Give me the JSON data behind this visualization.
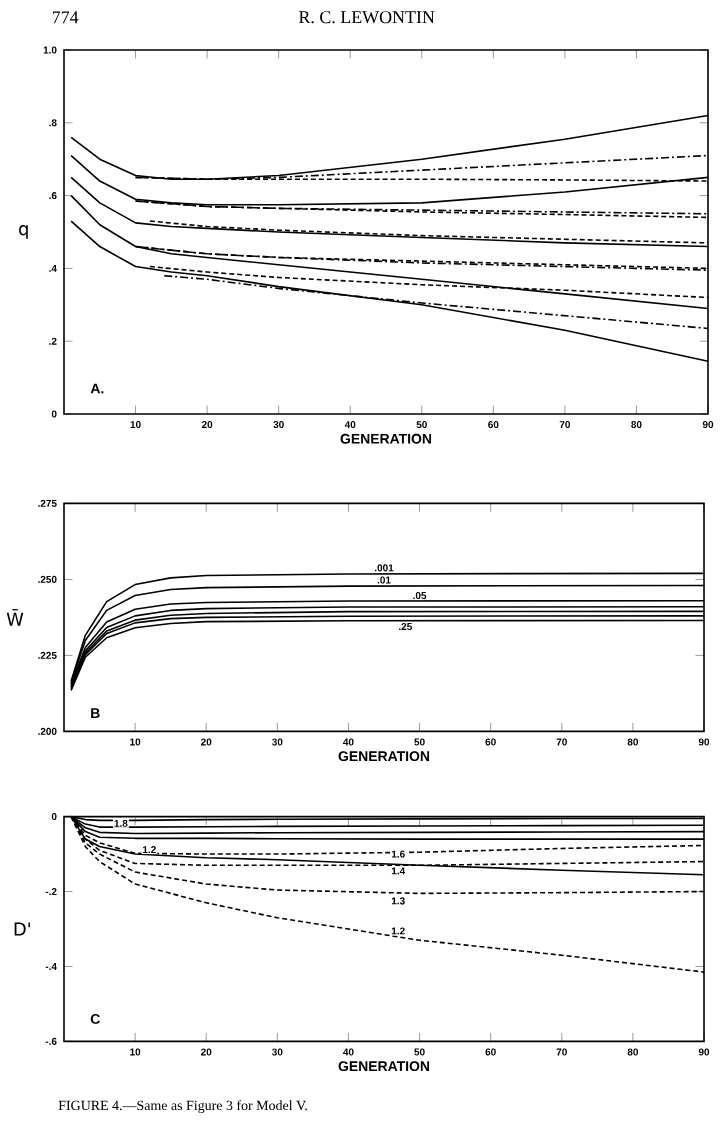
{
  "chart_data": [
    {
      "type": "line",
      "title": "R. C. LEWONTIN",
      "xlabel": "GENERATION",
      "ylabel": "q",
      "xlim": [
        0,
        90
      ],
      "xticks": [
        10,
        20,
        30,
        40,
        50,
        60,
        70,
        80,
        90
      ],
      "ylim": [
        0,
        1.0
      ],
      "yticks": [
        0,
        {
          "value": 0.2,
          "label": ".2"
        },
        {
          "value": 0.4,
          "label": ".4"
        },
        {
          "value": 0.6,
          "label": ".6"
        },
        {
          "value": 0.8,
          "label": ".8"
        },
        {
          "value": 1.0,
          "label": "1.0"
        }
      ],
      "annotations": [
        "774",
        "A."
      ],
      "series": [
        {
          "color": "#000000",
          "line_style": "solid",
          "x": [
            1,
            5,
            10,
            15,
            20,
            30,
            50,
            70,
            90
          ],
          "values": [
            0.76,
            0.7,
            0.655,
            0.645,
            0.645,
            0.655,
            0.7,
            0.755,
            0.82
          ]
        },
        {
          "color": "#000000",
          "line_style": "solid",
          "x": [
            1,
            5,
            10,
            15,
            20,
            30,
            50,
            70,
            90
          ],
          "values": [
            0.71,
            0.64,
            0.59,
            0.58,
            0.575,
            0.575,
            0.58,
            0.61,
            0.65
          ]
        },
        {
          "color": "#000000",
          "line_style": "solid",
          "x": [
            1,
            5,
            10,
            15,
            20,
            30,
            50,
            70,
            90
          ],
          "values": [
            0.65,
            0.58,
            0.525,
            0.515,
            0.51,
            0.5,
            0.485,
            0.47,
            0.46
          ]
        },
        {
          "color": "#000000",
          "line_style": "solid",
          "x": [
            1,
            5,
            10,
            15,
            20,
            30,
            50,
            70,
            90
          ],
          "values": [
            0.6,
            0.52,
            0.46,
            0.44,
            0.43,
            0.41,
            0.37,
            0.33,
            0.29
          ]
        },
        {
          "color": "#000000",
          "line_style": "solid",
          "x": [
            1,
            5,
            10,
            15,
            20,
            30,
            50,
            70,
            90
          ],
          "values": [
            0.53,
            0.46,
            0.405,
            0.39,
            0.38,
            0.35,
            0.3,
            0.23,
            0.145
          ]
        },
        {
          "color": "#000000",
          "line_style": "dashdot",
          "x": [
            10,
            20,
            30,
            50,
            70,
            90
          ],
          "values": [
            0.65,
            0.645,
            0.65,
            0.67,
            0.69,
            0.71
          ]
        },
        {
          "color": "#000000",
          "line_style": "dashed",
          "x": [
            10,
            20,
            30,
            50,
            70,
            90
          ],
          "values": [
            0.65,
            0.645,
            0.645,
            0.645,
            0.643,
            0.64
          ]
        },
        {
          "color": "#000000",
          "line_style": "dashdot",
          "x": [
            10,
            20,
            30,
            50,
            70,
            90
          ],
          "values": [
            0.585,
            0.57,
            0.565,
            0.56,
            0.555,
            0.55
          ]
        },
        {
          "color": "#000000",
          "line_style": "dashed",
          "x": [
            10,
            20,
            30,
            50,
            70,
            90
          ],
          "values": [
            0.585,
            0.57,
            0.565,
            0.555,
            0.548,
            0.54
          ]
        },
        {
          "color": "#000000",
          "line_style": "dashed",
          "x": [
            12,
            20,
            30,
            50,
            70,
            90
          ],
          "values": [
            0.53,
            0.515,
            0.505,
            0.49,
            0.48,
            0.47
          ]
        },
        {
          "color": "#000000",
          "line_style": "dashdot",
          "x": [
            10,
            20,
            30,
            50,
            70,
            90
          ],
          "values": [
            0.46,
            0.44,
            0.43,
            0.415,
            0.405,
            0.395
          ]
        },
        {
          "color": "#000000",
          "line_style": "dashed",
          "x": [
            10,
            20,
            30,
            50,
            70,
            90
          ],
          "values": [
            0.46,
            0.44,
            0.43,
            0.42,
            0.41,
            0.4
          ]
        },
        {
          "color": "#000000",
          "line_style": "dashed",
          "x": [
            12,
            20,
            30,
            50,
            70,
            90
          ],
          "values": [
            0.405,
            0.39,
            0.375,
            0.355,
            0.34,
            0.32
          ]
        },
        {
          "color": "#000000",
          "line_style": "dashdot",
          "x": [
            14,
            20,
            30,
            50,
            70,
            90
          ],
          "values": [
            0.38,
            0.37,
            0.345,
            0.305,
            0.27,
            0.235
          ]
        }
      ]
    },
    {
      "type": "line",
      "xlabel": "GENERATION",
      "ylabel": "W̄",
      "xlim": [
        0,
        90
      ],
      "xticks": [
        10,
        20,
        30,
        40,
        50,
        60,
        70,
        80,
        90
      ],
      "ylim": [
        0.2,
        0.275
      ],
      "yticks": [
        {
          "value": 0.2,
          "label": ".200"
        },
        {
          "value": 0.225,
          "label": ".225"
        },
        {
          "value": 0.25,
          "label": ".250"
        },
        {
          "value": 0.275,
          "label": ".275"
        }
      ],
      "annotations": [
        "B",
        {
          "text": ".001",
          "x": 45,
          "y": 0.2538
        },
        {
          "text": ".01",
          "x": 45,
          "y": 0.2498
        },
        {
          "text": ".05",
          "x": 50,
          "y": 0.2447
        },
        {
          "text": ".25",
          "x": 48,
          "y": 0.2345
        }
      ],
      "series": [
        {
          "color": "#000000",
          "line_style": "solid",
          "x": [
            1,
            3,
            6,
            10,
            15,
            20,
            40,
            90
          ],
          "values": [
            0.2165,
            0.2316,
            0.2427,
            0.2483,
            0.2505,
            0.2513,
            0.2518,
            0.252
          ]
        },
        {
          "color": "#000000",
          "line_style": "solid",
          "x": [
            1,
            3,
            6,
            10,
            15,
            20,
            40,
            90
          ],
          "values": [
            0.216,
            0.2299,
            0.2398,
            0.2447,
            0.2467,
            0.2473,
            0.2478,
            0.248
          ]
        },
        {
          "color": "#000000",
          "line_style": "solid",
          "x": [
            1,
            3,
            6,
            10,
            15,
            20,
            40,
            90
          ],
          "values": [
            0.2155,
            0.2276,
            0.236,
            0.2402,
            0.2419,
            0.2424,
            0.2429,
            0.243
          ]
        },
        {
          "color": "#000000",
          "line_style": "solid",
          "x": [
            1,
            3,
            6,
            10,
            15,
            20,
            40,
            90
          ],
          "values": [
            0.215,
            0.2265,
            0.2342,
            0.238,
            0.2398,
            0.2404,
            0.2409,
            0.241
          ]
        },
        {
          "color": "#000000",
          "line_style": "solid",
          "x": [
            1,
            3,
            6,
            10,
            15,
            20,
            40,
            90
          ],
          "values": [
            0.2145,
            0.2258,
            0.233,
            0.2366,
            0.2382,
            0.2388,
            0.2394,
            0.2395
          ]
        },
        {
          "color": "#000000",
          "line_style": "solid",
          "x": [
            1,
            3,
            6,
            10,
            15,
            20,
            40,
            90
          ],
          "values": [
            0.214,
            0.2252,
            0.2322,
            0.2357,
            0.2371,
            0.2375,
            0.2379,
            0.238
          ]
        },
        {
          "color": "#000000",
          "line_style": "solid",
          "x": [
            1,
            3,
            6,
            10,
            15,
            20,
            40,
            90
          ],
          "values": [
            0.2135,
            0.2244,
            0.2308,
            0.2341,
            0.2355,
            0.2361,
            0.2364,
            0.2365
          ]
        }
      ]
    },
    {
      "type": "line",
      "xlabel": "GENERATION",
      "ylabel": "D'",
      "xlim": [
        0,
        90
      ],
      "xticks": [
        10,
        20,
        30,
        40,
        50,
        60,
        70,
        80,
        90
      ],
      "ylim": [
        -0.6,
        0
      ],
      "yticks": [
        {
          "value": -0.6,
          "label": "-.6"
        },
        {
          "value": -0.4,
          "label": "-.4"
        },
        {
          "value": -0.2,
          "label": "-.2"
        },
        0
      ],
      "annotations": [
        "C",
        {
          "text": "1.8",
          "x": 8,
          "y": -0.018
        },
        {
          "text": "1.2",
          "x": 12,
          "y": -0.088
        },
        {
          "text": "1.6",
          "x": 47,
          "y": -0.1
        },
        {
          "text": "1.4",
          "x": 47,
          "y": -0.145
        },
        {
          "text": "1.3",
          "x": 47,
          "y": -0.225
        },
        {
          "text": "1.2",
          "x": 47,
          "y": -0.305
        },
        "FIGURE 4.—Same as Figure 3 for Model V."
      ],
      "series": [
        {
          "color": "#000000",
          "line_style": "solid",
          "x": [
            1,
            3,
            5,
            10,
            20,
            30,
            50,
            70,
            90
          ],
          "values": [
            0,
            -0.008,
            -0.01,
            -0.01,
            -0.008,
            -0.007,
            -0.006,
            -0.005,
            -0.005
          ]
        },
        {
          "color": "#000000",
          "line_style": "solid",
          "x": [
            1,
            3,
            5,
            10,
            20,
            30,
            50,
            70,
            90
          ],
          "values": [
            0,
            -0.02,
            -0.028,
            -0.028,
            -0.027,
            -0.026,
            -0.025,
            -0.024,
            -0.023
          ]
        },
        {
          "color": "#000000",
          "line_style": "solid",
          "x": [
            1,
            3,
            5,
            10,
            20,
            30,
            50,
            70,
            90
          ],
          "values": [
            0,
            -0.03,
            -0.042,
            -0.045,
            -0.044,
            -0.043,
            -0.042,
            -0.041,
            -0.04
          ]
        },
        {
          "color": "#000000",
          "line_style": "solid",
          "x": [
            1,
            3,
            5,
            10,
            20,
            30,
            50,
            70,
            90
          ],
          "values": [
            0,
            -0.04,
            -0.055,
            -0.058,
            -0.058,
            -0.059,
            -0.06,
            -0.06,
            -0.06
          ]
        },
        {
          "color": "#000000",
          "line_style": "solid",
          "x": [
            1,
            3,
            5,
            10,
            20,
            30,
            50,
            70,
            90
          ],
          "values": [
            0,
            -0.06,
            -0.08,
            -0.1,
            -0.11,
            -0.115,
            -0.13,
            -0.143,
            -0.155
          ]
        },
        {
          "color": "#000000",
          "line_style": "dashed",
          "x": [
            1,
            3,
            5,
            10,
            20,
            30,
            50,
            70,
            90
          ],
          "values": [
            0,
            -0.05,
            -0.07,
            -0.098,
            -0.1,
            -0.1,
            -0.095,
            -0.085,
            -0.077
          ]
        },
        {
          "color": "#000000",
          "line_style": "dashed",
          "x": [
            1,
            3,
            5,
            10,
            20,
            30,
            50,
            70,
            90
          ],
          "values": [
            0,
            -0.06,
            -0.09,
            -0.125,
            -0.13,
            -0.13,
            -0.13,
            -0.125,
            -0.12
          ]
        },
        {
          "color": "#000000",
          "line_style": "dashed",
          "x": [
            1,
            3,
            5,
            10,
            20,
            30,
            50,
            70,
            90
          ],
          "values": [
            0,
            -0.07,
            -0.1,
            -0.148,
            -0.18,
            -0.196,
            -0.205,
            -0.203,
            -0.2
          ]
        },
        {
          "color": "#000000",
          "line_style": "dashed",
          "x": [
            1,
            3,
            5,
            10,
            20,
            30,
            50,
            70,
            90
          ],
          "values": [
            0,
            -0.08,
            -0.12,
            -0.18,
            -0.23,
            -0.27,
            -0.33,
            -0.37,
            -0.415
          ]
        }
      ]
    }
  ]
}
